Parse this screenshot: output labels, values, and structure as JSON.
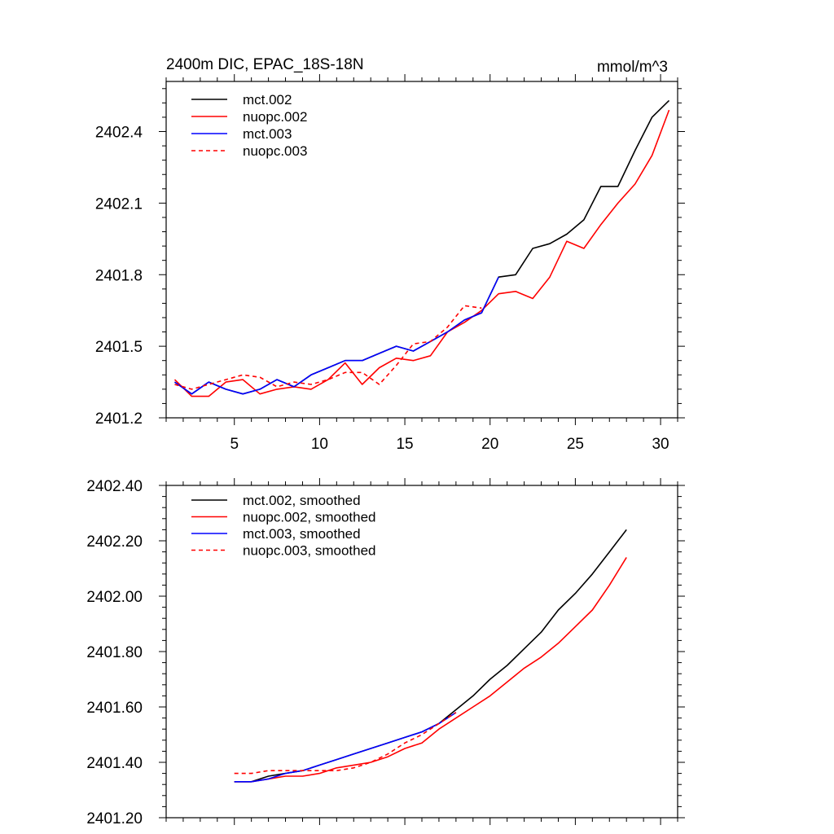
{
  "chart_data": [
    {
      "type": "line",
      "title": "2400m DIC, EPAC_18S-18N",
      "units": "mmol/m^3",
      "xlabel": "",
      "ylabel": "",
      "xlim": [
        1,
        31
      ],
      "ylim": [
        2401.2,
        2402.61
      ],
      "xticks": [
        5,
        10,
        15,
        20,
        25,
        30
      ],
      "yticks": [
        2401.2,
        2401.5,
        2401.8,
        2402.1,
        2402.4
      ],
      "ytick_labels": [
        "2401.2",
        "2401.5",
        "2401.8",
        "2402.1",
        "2402.4"
      ],
      "legend_position": "top-left",
      "series": [
        {
          "name": "mct.002",
          "color": "#000000",
          "dash": "solid",
          "x": [
            1.5,
            2.5,
            3.5,
            4.5,
            5.5,
            6.5,
            7.5,
            8.5,
            9.5,
            10.5,
            11.5,
            12.5,
            13.5,
            14.5,
            15.5,
            16.5,
            17.5,
            18.5,
            19.5,
            20.5,
            21.5,
            22.5,
            23.5,
            24.5,
            25.5,
            26.5,
            27.5,
            28.5,
            29.5,
            30.5
          ],
          "values": [
            2401.35,
            2401.3,
            2401.35,
            2401.32,
            2401.3,
            2401.32,
            2401.36,
            2401.33,
            2401.38,
            2401.41,
            2401.44,
            2401.44,
            2401.47,
            2401.5,
            2401.48,
            2401.52,
            2401.56,
            2401.61,
            2401.64,
            2401.79,
            2401.8,
            2401.91,
            2401.93,
            2401.97,
            2402.03,
            2402.17,
            2402.17,
            2402.32,
            2402.46,
            2402.53
          ]
        },
        {
          "name": "nuopc.002",
          "color": "#ff0000",
          "dash": "solid",
          "x": [
            1.5,
            2.5,
            3.5,
            4.5,
            5.5,
            6.5,
            7.5,
            8.5,
            9.5,
            10.5,
            11.5,
            12.5,
            13.5,
            14.5,
            15.5,
            16.5,
            17.5,
            18.5,
            19.5,
            20.5,
            21.5,
            22.5,
            23.5,
            24.5,
            25.5,
            26.5,
            27.5,
            28.5,
            29.5,
            30.5
          ],
          "values": [
            2401.36,
            2401.29,
            2401.29,
            2401.35,
            2401.36,
            2401.3,
            2401.32,
            2401.33,
            2401.32,
            2401.36,
            2401.43,
            2401.34,
            2401.41,
            2401.45,
            2401.44,
            2401.46,
            2401.56,
            2401.6,
            2401.65,
            2401.72,
            2401.73,
            2401.7,
            2401.79,
            2401.94,
            2401.91,
            2402.01,
            2402.1,
            2402.18,
            2402.3,
            2402.49
          ]
        },
        {
          "name": "mct.003",
          "color": "#0000ff",
          "dash": "solid",
          "x": [
            1.5,
            2.5,
            3.5,
            4.5,
            5.5,
            6.5,
            7.5,
            8.5,
            9.5,
            10.5,
            11.5,
            12.5,
            13.5,
            14.5,
            15.5,
            16.5,
            17.5,
            18.5,
            19.5,
            20.5
          ],
          "values": [
            2401.35,
            2401.3,
            2401.35,
            2401.32,
            2401.3,
            2401.32,
            2401.36,
            2401.33,
            2401.38,
            2401.41,
            2401.44,
            2401.44,
            2401.47,
            2401.5,
            2401.48,
            2401.52,
            2401.56,
            2401.61,
            2401.64,
            2401.79
          ]
        },
        {
          "name": "nuopc.003",
          "color": "#ff0000",
          "dash": "dashed",
          "x": [
            1.5,
            2.5,
            3.5,
            4.5,
            5.5,
            6.5,
            7.5,
            8.5,
            9.5,
            10.5,
            11.5,
            12.5,
            13.5,
            14.5,
            15.5,
            16.5,
            17.5,
            18.5,
            19.5
          ],
          "values": [
            2401.34,
            2401.32,
            2401.34,
            2401.36,
            2401.38,
            2401.37,
            2401.33,
            2401.35,
            2401.34,
            2401.36,
            2401.39,
            2401.39,
            2401.34,
            2401.42,
            2401.51,
            2401.52,
            2401.58,
            2401.67,
            2401.66
          ]
        }
      ]
    },
    {
      "type": "line",
      "title": "",
      "xlabel": "",
      "ylabel": "",
      "xlim": [
        1,
        31
      ],
      "ylim": [
        2401.2,
        2402.4
      ],
      "xticks": [
        5,
        10,
        15,
        20,
        25,
        30
      ],
      "yticks": [
        2401.2,
        2401.4,
        2401.6,
        2401.8,
        2402.0,
        2402.2,
        2402.4
      ],
      "ytick_labels": [
        "2401.20",
        "2401.40",
        "2401.60",
        "2401.80",
        "2402.00",
        "2402.20",
        "2402.40"
      ],
      "legend_position": "top-left",
      "series": [
        {
          "name": "mct.002, smoothed",
          "color": "#000000",
          "dash": "solid",
          "x": [
            5,
            6,
            7,
            8,
            9,
            10,
            11,
            12,
            13,
            14,
            15,
            16,
            17,
            18,
            19,
            20,
            21,
            22,
            23,
            24,
            25,
            26,
            27,
            28
          ],
          "values": [
            2401.33,
            2401.33,
            2401.35,
            2401.36,
            2401.37,
            2401.39,
            2401.41,
            2401.43,
            2401.45,
            2401.47,
            2401.49,
            2401.51,
            2401.54,
            2401.59,
            2401.64,
            2401.7,
            2401.75,
            2401.81,
            2401.87,
            2401.95,
            2402.01,
            2402.08,
            2402.16,
            2402.24
          ]
        },
        {
          "name": "nuopc.002, smoothed",
          "color": "#ff0000",
          "dash": "solid",
          "x": [
            5,
            6,
            7,
            8,
            9,
            10,
            11,
            12,
            13,
            14,
            15,
            16,
            17,
            18,
            19,
            20,
            21,
            22,
            23,
            24,
            25,
            26,
            27,
            28
          ],
          "values": [
            2401.33,
            2401.33,
            2401.34,
            2401.35,
            2401.35,
            2401.36,
            2401.38,
            2401.39,
            2401.4,
            2401.42,
            2401.45,
            2401.47,
            2401.52,
            2401.56,
            2401.6,
            2401.64,
            2401.69,
            2401.74,
            2401.78,
            2401.83,
            2401.89,
            2401.95,
            2402.04,
            2402.14
          ]
        },
        {
          "name": "mct.003, smoothed",
          "color": "#0000ff",
          "dash": "solid",
          "x": [
            5,
            6,
            7,
            8,
            9,
            10,
            11,
            12,
            13,
            14,
            15,
            16,
            17,
            18
          ],
          "values": [
            2401.33,
            2401.33,
            2401.34,
            2401.36,
            2401.37,
            2401.39,
            2401.41,
            2401.43,
            2401.45,
            2401.47,
            2401.49,
            2401.51,
            2401.54,
            2401.58
          ]
        },
        {
          "name": "nuopc.003, smoothed",
          "color": "#ff0000",
          "dash": "dashed",
          "x": [
            5,
            6,
            7,
            8,
            9,
            10,
            11,
            12,
            13,
            14,
            15,
            16,
            17,
            18
          ],
          "values": [
            2401.36,
            2401.36,
            2401.37,
            2401.37,
            2401.37,
            2401.37,
            2401.37,
            2401.38,
            2401.4,
            2401.43,
            2401.47,
            2401.5,
            2401.54,
            2401.58
          ]
        }
      ]
    }
  ]
}
